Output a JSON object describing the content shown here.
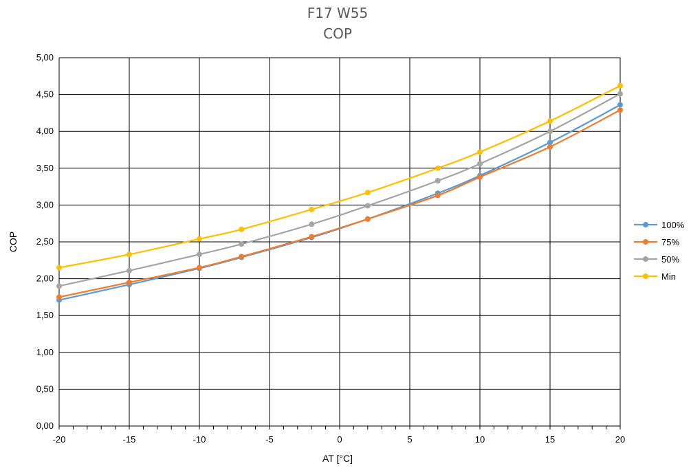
{
  "chart_data": {
    "type": "line",
    "title": "F17 W55",
    "subtitle": "COP",
    "xlabel": "AT [°C]",
    "ylabel": "COP",
    "xlim": [
      -20,
      20
    ],
    "ylim": [
      0,
      5
    ],
    "x_ticks": [
      "-20",
      "-15",
      "-10",
      "-5",
      "0",
      "5",
      "10",
      "15",
      "20"
    ],
    "y_ticks": [
      "0,00",
      "0,50",
      "1,00",
      "1,50",
      "2,00",
      "2,50",
      "3,00",
      "3,50",
      "4,00",
      "4,50",
      "5,00"
    ],
    "grid": true,
    "legend_position": "right",
    "series": [
      {
        "name": "100%",
        "color": "#5B9BD5",
        "x": [
          -20,
          -15,
          -10,
          -7,
          -2,
          2,
          7,
          10,
          15,
          20
        ],
        "y": [
          1.71,
          1.92,
          2.14,
          2.29,
          2.56,
          2.81,
          3.16,
          3.4,
          3.85,
          4.36
        ]
      },
      {
        "name": "75%",
        "color": "#ED7D31",
        "x": [
          -20,
          -15,
          -10,
          -7,
          -2,
          2,
          7,
          10,
          15,
          20
        ],
        "y": [
          1.75,
          1.95,
          2.15,
          2.3,
          2.57,
          2.81,
          3.13,
          3.38,
          3.79,
          4.29
        ]
      },
      {
        "name": "50%",
        "color": "#A5A5A5",
        "x": [
          -20,
          -15,
          -10,
          -7,
          -2,
          2,
          7,
          10,
          15,
          20
        ],
        "y": [
          1.9,
          2.11,
          2.33,
          2.47,
          2.74,
          2.99,
          3.33,
          3.56,
          4.0,
          4.51
        ]
      },
      {
        "name": "Min",
        "color": "#FFC000",
        "x": [
          -20,
          -15,
          -10,
          -7,
          -2,
          2,
          7,
          10,
          15,
          20
        ],
        "y": [
          2.15,
          2.33,
          2.54,
          2.67,
          2.94,
          3.17,
          3.5,
          3.72,
          4.14,
          4.62
        ]
      }
    ]
  }
}
